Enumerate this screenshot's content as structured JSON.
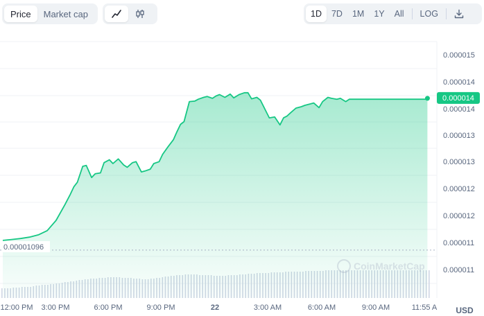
{
  "toolbar": {
    "type_tabs": [
      {
        "label": "Price",
        "active": true
      },
      {
        "label": "Market cap",
        "active": false
      }
    ],
    "style_tabs": [
      {
        "icon": "line-chart-icon",
        "active": true
      },
      {
        "icon": "candlestick-icon",
        "active": false
      }
    ],
    "range_tabs": [
      {
        "label": "1D",
        "active": true
      },
      {
        "label": "7D",
        "active": false
      },
      {
        "label": "1M",
        "active": false
      },
      {
        "label": "1Y",
        "active": false
      },
      {
        "label": "All",
        "active": false
      }
    ],
    "log_label": "LOG",
    "download_icon": "download-icon"
  },
  "colors": {
    "line": "#16c784",
    "area_top": "#16c784",
    "volume": "#cfd6e4",
    "grid": "#eff2f5",
    "label_bg": "#16c784"
  },
  "watermark": "CoinMarketCap",
  "currency": "USD",
  "chart_data": {
    "type": "line",
    "x_tick_labels": [
      "12:00 PM",
      "3:00 PM",
      "6:00 PM",
      "9:00 PM",
      "22",
      "3:00 AM",
      "6:00 AM",
      "9:00 AM",
      "11:55 A"
    ],
    "y_tick_labels": [
      "0.000015",
      "0.000014",
      "0.000014",
      "0.000013",
      "0.000013",
      "0.000012",
      "0.000012",
      "0.000011",
      "0.000011"
    ],
    "ylim": [
      1.085e-05,
      1.5e-05
    ],
    "open_value_label": "0.00001096",
    "current_value_label": "0.000014",
    "x_hours": [
      0,
      0.5,
      1,
      1.5,
      2,
      2.5,
      3,
      3.5,
      3.8,
      4,
      4.2,
      4.5,
      4.7,
      5,
      5.2,
      5.5,
      5.7,
      6,
      6.2,
      6.5,
      6.8,
      7,
      7.3,
      7.5,
      7.8,
      8,
      8.3,
      8.5,
      8.8,
      9,
      9.3,
      9.6,
      9.8,
      10,
      10.2,
      10.5,
      10.8,
      11,
      11.3,
      11.5,
      11.8,
      12,
      12.2,
      12.5,
      12.8,
      13,
      13.3,
      13.6,
      13.8,
      14,
      14.3,
      14.5,
      14.8,
      15,
      15.3,
      15.6,
      15.8,
      16,
      16.2,
      16.5,
      16.8,
      17,
      17.3,
      17.5,
      17.8,
      18,
      18.3,
      18.5,
      18.8,
      19,
      19.3,
      19.5,
      19.8,
      20,
      20.3,
      20.5,
      20.8,
      21,
      21.3,
      21.5,
      21.8,
      22,
      22.3,
      22.5,
      22.8,
      23,
      23.3,
      23.5,
      23.8,
      23.9
    ],
    "values": [
      1.097e-05,
      1.099e-05,
      1.101e-05,
      1.104e-05,
      1.109e-05,
      1.118e-05,
      1.14e-05,
      1.174e-05,
      1.196e-05,
      1.212e-05,
      1.222e-05,
      1.256e-05,
      1.258e-05,
      1.232e-05,
      1.24e-05,
      1.242e-05,
      1.264e-05,
      1.27e-05,
      1.262e-05,
      1.272e-05,
      1.259e-05,
      1.254e-05,
      1.264e-05,
      1.266e-05,
      1.244e-05,
      1.246e-05,
      1.25e-05,
      1.262e-05,
      1.266e-05,
      1.282e-05,
      1.298e-05,
      1.313e-05,
      1.33e-05,
      1.346e-05,
      1.352e-05,
      1.395e-05,
      1.396e-05,
      1.4e-05,
      1.404e-05,
      1.406e-05,
      1.402e-05,
      1.407e-05,
      1.41e-05,
      1.404e-05,
      1.411e-05,
      1.403e-05,
      1.41e-05,
      1.414e-05,
      1.414e-05,
      1.401e-05,
      1.404e-05,
      1.398e-05,
      1.375e-05,
      1.36e-05,
      1.362e-05,
      1.345e-05,
      1.36e-05,
      1.364e-05,
      1.371e-05,
      1.381e-05,
      1.384e-05,
      1.387e-05,
      1.39e-05,
      1.392e-05,
      1.382e-05,
      1.395e-05,
      1.404e-05,
      1.402e-05,
      1.4e-05,
      1.402e-05,
      1.395e-05,
      1.4e-05,
      1.4e-05,
      1.4e-05,
      1.4e-05,
      1.4e-05,
      1.4e-05,
      1.4e-05,
      1.4e-05,
      1.4e-05,
      1.4e-05,
      1.4e-05,
      1.4e-05,
      1.4e-05,
      1.4e-05,
      1.4e-05,
      1.4e-05,
      1.4e-05,
      1.4e-05,
      1.402e-05
    ],
    "volume": [
      14,
      14,
      15,
      15,
      16,
      16,
      17,
      18,
      19,
      19,
      20,
      21,
      22,
      23,
      24,
      25,
      26,
      27,
      28,
      28,
      29,
      29,
      30,
      30,
      30,
      29,
      29,
      28,
      28,
      27,
      27,
      28,
      29,
      30,
      31,
      32,
      33,
      33,
      34,
      34,
      34,
      33,
      33,
      33,
      32,
      32,
      32,
      33,
      33,
      34,
      34,
      35,
      35,
      36,
      36,
      36,
      37,
      37,
      37,
      38,
      38,
      38,
      38,
      39,
      39,
      39,
      39,
      40,
      40,
      40,
      40,
      40,
      40,
      40,
      40,
      40,
      40,
      40,
      40,
      40,
      40,
      40,
      40,
      40,
      40,
      40,
      40,
      40,
      40,
      40
    ]
  }
}
